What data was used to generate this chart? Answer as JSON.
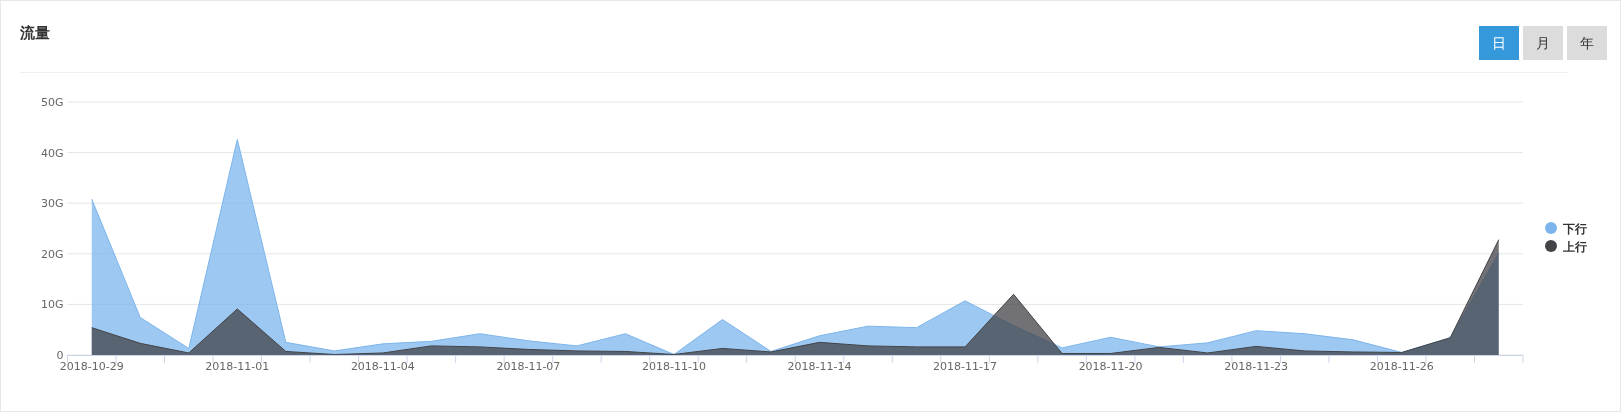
{
  "chart_data": {
    "type": "area",
    "title": "流量",
    "annotations": [
      "日",
      "月",
      "年"
    ],
    "categories": [
      "2018-10-29",
      null,
      null,
      "2018-11-01",
      null,
      null,
      "2018-11-04",
      null,
      null,
      "2018-11-07",
      null,
      null,
      "2018-11-10",
      null,
      null,
      "2018-11-14",
      null,
      null,
      "2018-11-17",
      null,
      null,
      "2018-11-20",
      null,
      null,
      "2018-11-23",
      null,
      null,
      "2018-11-26",
      null,
      null
    ],
    "series": [
      {
        "name": "下行",
        "color": "#7cb5ec",
        "values": [
          30.8,
          7.4,
          1.3,
          42.6,
          2.5,
          0.8,
          2.2,
          2.7,
          4.2,
          2.8,
          1.8,
          4.2,
          0.1,
          7.0,
          0.7,
          3.8,
          5.7,
          5.4,
          10.7,
          5.8,
          1.4,
          3.5,
          1.6,
          2.4,
          4.8,
          4.2,
          3.0,
          0.5,
          3.4,
          20.1
        ]
      },
      {
        "name": "上行",
        "color": "#434348",
        "values": [
          5.4,
          2.3,
          0.4,
          9.1,
          0.7,
          0.1,
          0.4,
          1.8,
          1.6,
          1.1,
          0.8,
          0.7,
          0.1,
          1.3,
          0.6,
          2.5,
          1.8,
          1.6,
          1.6,
          12.0,
          0.3,
          0.3,
          1.5,
          0.4,
          1.7,
          0.8,
          0.6,
          0.5,
          3.4,
          22.8
        ]
      }
    ],
    "ylim": [
      0,
      50
    ],
    "yticks": [
      0,
      {
        "value": 10,
        "label": "10G"
      },
      {
        "value": 20,
        "label": "20G"
      },
      {
        "value": 30,
        "label": "30G"
      },
      {
        "value": 40,
        "label": "40G"
      },
      {
        "value": 50,
        "label": "50G"
      }
    ],
    "grid": "y",
    "legend": "right"
  }
}
